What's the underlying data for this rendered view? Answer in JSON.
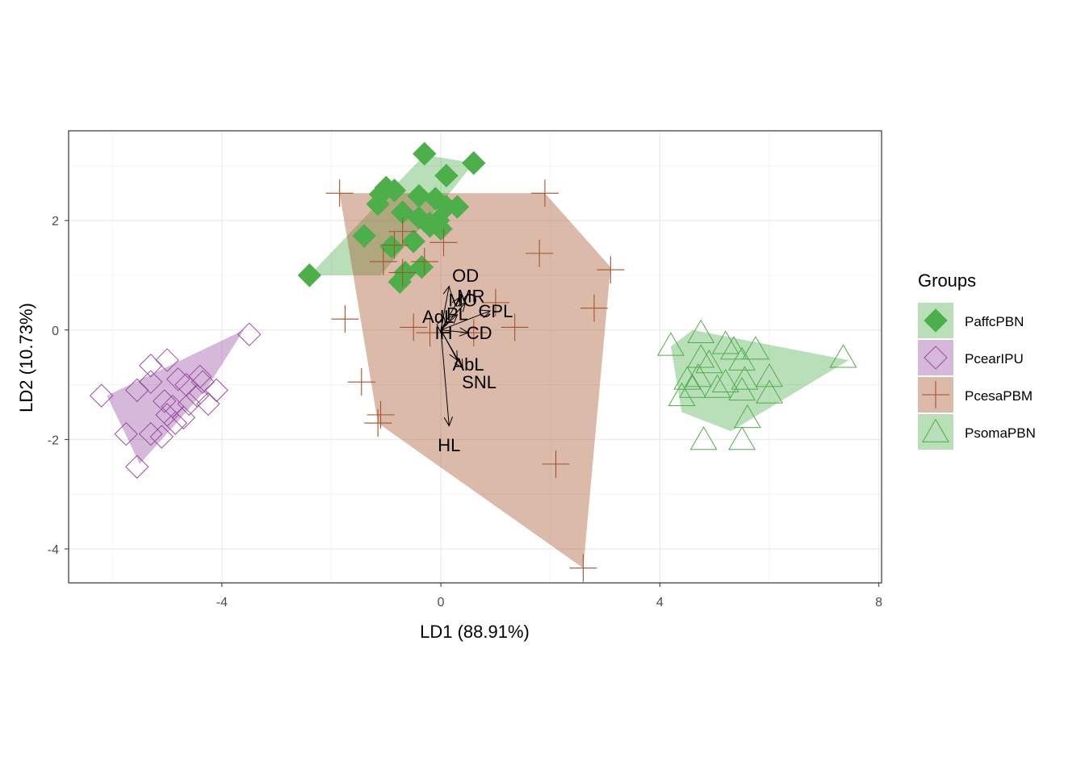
{
  "chart_data": {
    "type": "scatter",
    "title": "",
    "xlabel": "LD1 (88.91%)",
    "ylabel": "LD2 (10.73%)",
    "xlim": [
      -6.8,
      8.05
    ],
    "ylim": [
      -4.62,
      3.64
    ],
    "x_ticks": [
      -4,
      0,
      4,
      8
    ],
    "y_ticks": [
      -4,
      -2,
      0,
      2
    ],
    "x_tick_labels": [
      "-4",
      "0",
      "4",
      "8"
    ],
    "y_tick_labels": [
      "-4",
      "-2",
      "0",
      "2"
    ],
    "grid": true,
    "legend": {
      "title": "Groups",
      "position": "right"
    },
    "series": [
      {
        "name": "PaffcPBN",
        "color": "#4daf4a",
        "shape": "filled-diamond",
        "hull": [
          [
            -2.4,
            1.0
          ],
          [
            -0.3,
            3.2
          ],
          [
            0.6,
            3.05
          ],
          [
            0.2,
            2.55
          ],
          [
            -1.1,
            1.0
          ],
          [
            -2.4,
            1.0
          ]
        ],
        "points": [
          [
            -2.4,
            1.0
          ],
          [
            -0.3,
            3.22
          ],
          [
            0.6,
            3.05
          ],
          [
            0.1,
            2.82
          ],
          [
            -1.1,
            2.48
          ],
          [
            -1.0,
            2.6
          ],
          [
            -0.85,
            2.55
          ],
          [
            -0.4,
            2.45
          ],
          [
            -0.1,
            2.4
          ],
          [
            0.3,
            2.25
          ],
          [
            -1.15,
            2.3
          ],
          [
            -0.7,
            2.15
          ],
          [
            -0.4,
            2.05
          ],
          [
            -0.05,
            2.0
          ],
          [
            0.1,
            2.25
          ],
          [
            -1.4,
            1.72
          ],
          [
            -0.5,
            1.62
          ],
          [
            -0.9,
            1.52
          ],
          [
            -0.35,
            1.15
          ],
          [
            -0.65,
            1.05
          ],
          [
            -0.75,
            0.88
          ],
          [
            -0.2,
            1.95
          ],
          [
            0.0,
            1.85
          ],
          [
            -0.2,
            1.9
          ]
        ]
      },
      {
        "name": "PcearIPU",
        "color": "#984ea3",
        "shape": "open-diamond",
        "hull": [
          [
            -6.1,
            -1.2
          ],
          [
            -3.6,
            0.0
          ],
          [
            -4.3,
            -1.1
          ],
          [
            -5.5,
            -2.45
          ],
          [
            -6.1,
            -1.2
          ]
        ],
        "points": [
          [
            -6.2,
            -1.2
          ],
          [
            -3.5,
            -0.08
          ],
          [
            -5.75,
            -1.9
          ],
          [
            -5.55,
            -2.5
          ],
          [
            -5.3,
            -0.65
          ],
          [
            -5.0,
            -0.55
          ],
          [
            -5.55,
            -1.1
          ],
          [
            -5.3,
            -0.95
          ],
          [
            -5.05,
            -1.3
          ],
          [
            -4.9,
            -1.4
          ],
          [
            -4.8,
            -0.9
          ],
          [
            -4.65,
            -1.0
          ],
          [
            -4.4,
            -0.85
          ],
          [
            -4.35,
            -0.95
          ],
          [
            -4.45,
            -1.2
          ],
          [
            -4.25,
            -1.35
          ],
          [
            -4.1,
            -1.1
          ],
          [
            -4.6,
            -1.35
          ],
          [
            -5.0,
            -1.55
          ],
          [
            -4.7,
            -1.6
          ],
          [
            -5.3,
            -1.9
          ],
          [
            -4.85,
            -1.7
          ],
          [
            -5.1,
            -1.95
          ]
        ]
      },
      {
        "name": "PcesaPBM",
        "color": "#a6522a",
        "shape": "plus",
        "hull": [
          [
            -1.85,
            2.5
          ],
          [
            1.9,
            2.5
          ],
          [
            3.1,
            1.15
          ],
          [
            2.6,
            -4.35
          ],
          [
            -1.15,
            -1.7
          ],
          [
            -1.85,
            2.5
          ]
        ],
        "points": [
          [
            -1.85,
            2.5
          ],
          [
            1.9,
            2.5
          ],
          [
            3.1,
            1.1
          ],
          [
            2.6,
            -4.35
          ],
          [
            1.8,
            1.4
          ],
          [
            2.8,
            0.4
          ],
          [
            2.1,
            -2.45
          ],
          [
            -1.75,
            0.2
          ],
          [
            -1.45,
            -0.95
          ],
          [
            -1.1,
            -1.55
          ],
          [
            -1.15,
            -1.7
          ],
          [
            -0.7,
            1.8
          ],
          [
            -0.85,
            1.55
          ],
          [
            0.05,
            1.6
          ],
          [
            -0.3,
            1.25
          ],
          [
            -1.05,
            1.25
          ],
          [
            -0.7,
            1.05
          ],
          [
            1.0,
            0.5
          ],
          [
            1.35,
            0.05
          ],
          [
            0.6,
            -0.05
          ],
          [
            -0.2,
            -0.05
          ],
          [
            -0.5,
            0.05
          ]
        ]
      },
      {
        "name": "PsomaPBN",
        "color": "#4daf4a",
        "shape": "open-triangle",
        "hull": [
          [
            4.2,
            -0.3
          ],
          [
            4.6,
            0.0
          ],
          [
            7.45,
            -0.55
          ],
          [
            5.3,
            -1.85
          ],
          [
            4.4,
            -1.5
          ],
          [
            4.2,
            -0.3
          ]
        ],
        "points": [
          [
            4.2,
            -0.28
          ],
          [
            4.75,
            -0.05
          ],
          [
            5.2,
            -0.25
          ],
          [
            5.35,
            -0.35
          ],
          [
            5.75,
            -0.35
          ],
          [
            7.35,
            -0.5
          ],
          [
            4.75,
            -0.5
          ],
          [
            4.9,
            -0.6
          ],
          [
            5.5,
            -0.55
          ],
          [
            4.5,
            -0.9
          ],
          [
            4.7,
            -0.85
          ],
          [
            5.2,
            -0.95
          ],
          [
            5.55,
            -0.9
          ],
          [
            6.0,
            -0.85
          ],
          [
            4.6,
            -1.05
          ],
          [
            4.4,
            -1.2
          ],
          [
            5.05,
            -1.05
          ],
          [
            5.5,
            -1.1
          ],
          [
            6.0,
            -1.15
          ],
          [
            5.6,
            -1.6
          ],
          [
            4.8,
            -2.0
          ],
          [
            5.5,
            -2.0
          ]
        ]
      }
    ],
    "arrow_origin": [
      0.0,
      0.0
    ],
    "arrows": [
      {
        "label": "OD",
        "x": 0.15,
        "y": 0.8
      },
      {
        "label": "MR",
        "x": 0.35,
        "y": 0.6
      },
      {
        "label": "MO",
        "x": 0.45,
        "y": 0.5
      },
      {
        "label": "CPL",
        "x": 0.9,
        "y": 0.35
      },
      {
        "label": "AdL",
        "x": 0.05,
        "y": 0.25
      },
      {
        "label": "PL",
        "x": 0.3,
        "y": 0.28
      },
      {
        "label": "IH",
        "x": 0.0,
        "y": -0.05
      },
      {
        "label": "CD",
        "x": 0.5,
        "y": -0.05
      },
      {
        "label": "AbL",
        "x": 0.3,
        "y": -0.55
      },
      {
        "label": "SNL",
        "x": 0.4,
        "y": -0.7
      },
      {
        "label": "HL",
        "x": 0.15,
        "y": -1.75
      }
    ],
    "arrow_labels_pos": {
      "OD": [
        0.45,
        1.0
      ],
      "MR": [
        0.55,
        0.62
      ],
      "MO": [
        0.4,
        0.55
      ],
      "CPL": [
        1.0,
        0.35
      ],
      "AdL": [
        -0.05,
        0.25
      ],
      "PL": [
        0.3,
        0.3
      ],
      "IH": [
        0.05,
        -0.05
      ],
      "CD": [
        0.7,
        -0.05
      ],
      "AbL": [
        0.5,
        -0.62
      ],
      "SNL": [
        0.7,
        -0.95
      ],
      "HL": [
        0.15,
        -2.1
      ]
    }
  }
}
